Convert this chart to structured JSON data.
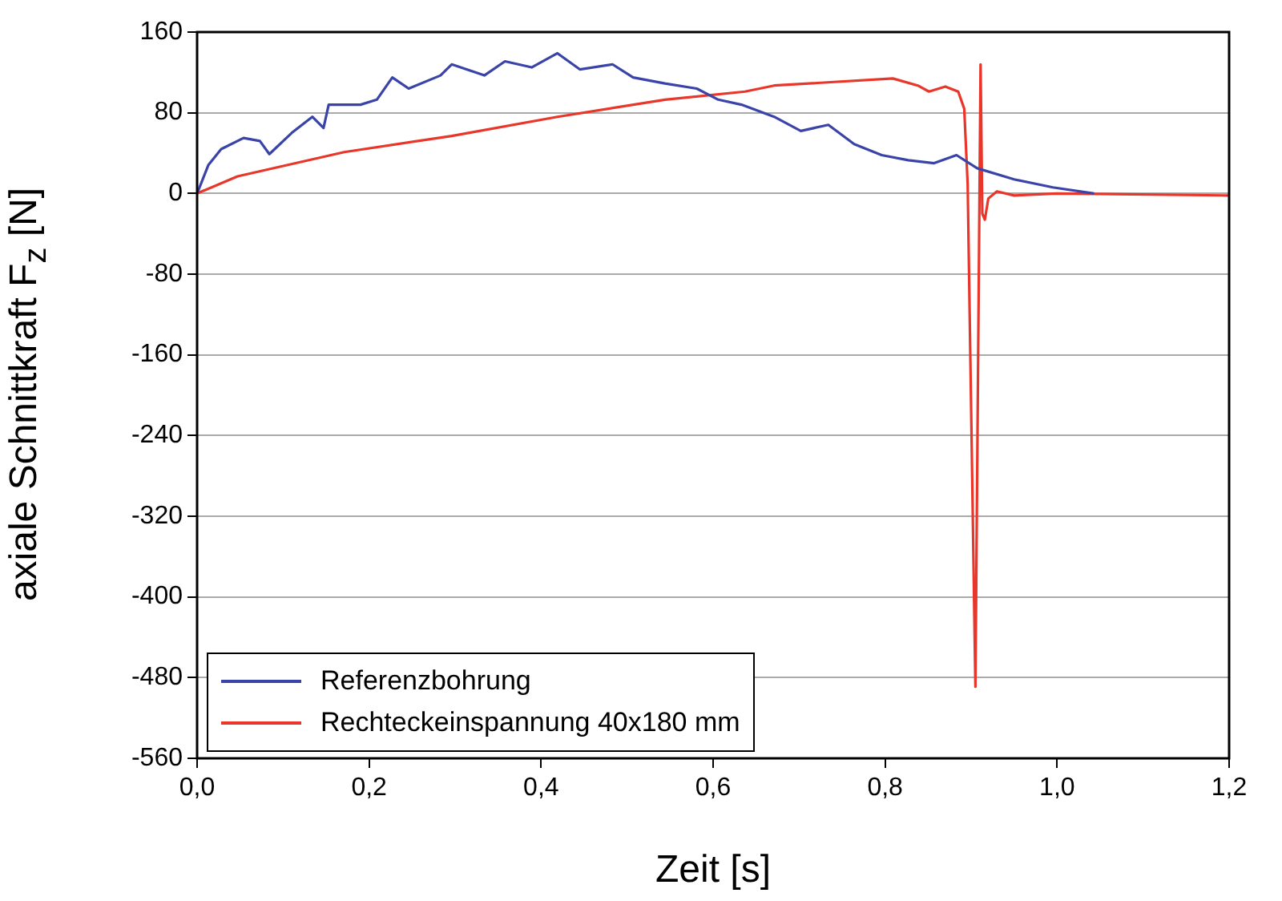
{
  "chart_data": {
    "type": "line",
    "xlabel": "Zeit [s]",
    "ylabel": "axiale Schnittkraft F$_{z}$ [N]",
    "xlim": [
      0,
      1.2
    ],
    "xticks": [
      {
        "value": 0,
        "label": "0,0"
      },
      {
        "value": 0.2,
        "label": "0,2"
      },
      {
        "value": 0.4,
        "label": "0,4"
      },
      {
        "value": 0.6,
        "label": "0,6"
      },
      {
        "value": 0.8,
        "label": "0,8"
      },
      {
        "value": 1,
        "label": "1,0"
      },
      {
        "value": 1.2,
        "label": "1,2"
      }
    ],
    "ylim": [
      -560,
      160
    ],
    "yticks": [
      -560,
      -480,
      -400,
      -320,
      -240,
      -160,
      -80,
      0,
      80,
      160
    ],
    "grid": "y",
    "legend": "bottom left",
    "marker": "none",
    "line_style": "solid",
    "series": [
      {
        "name": "Referenzbohrung",
        "color": "#3a44a8",
        "x": [
          0,
          0.013,
          0.028,
          0.054,
          0.073,
          0.084,
          0.11,
          0.134,
          0.147,
          0.153,
          0.19,
          0.209,
          0.227,
          0.246,
          0.283,
          0.296,
          0.334,
          0.358,
          0.389,
          0.419,
          0.445,
          0.483,
          0.507,
          0.544,
          0.581,
          0.606,
          0.633,
          0.671,
          0.702,
          0.734,
          0.764,
          0.796,
          0.827,
          0.857,
          0.883,
          0.907,
          0.95,
          0.995,
          1.043
        ],
        "values": [
          0,
          28,
          44,
          55,
          52,
          39,
          60,
          76,
          65,
          88,
          88,
          93,
          115,
          104,
          117,
          128,
          117,
          131,
          125,
          139,
          123,
          128,
          115,
          109,
          104,
          93,
          88,
          76,
          62,
          68,
          49,
          38,
          33,
          30,
          38,
          25,
          14,
          6,
          0
        ]
      },
      {
        "name": "Rechteckeinspannung 40x180 mm",
        "color": "#e8362a",
        "x": [
          0,
          0.047,
          0.171,
          0.296,
          0.419,
          0.544,
          0.637,
          0.671,
          0.809,
          0.838,
          0.851,
          0.87,
          0.885,
          0.892,
          0.896,
          0.905,
          0.911,
          0.913,
          0.916,
          0.92,
          0.93,
          0.95,
          1,
          1.2
        ],
        "values": [
          0,
          17,
          41,
          57,
          76,
          93,
          101,
          107,
          114,
          107,
          101,
          106,
          101,
          84,
          9,
          -489,
          128,
          -20,
          -26,
          -5,
          2,
          -2,
          0,
          -2
        ]
      }
    ]
  }
}
